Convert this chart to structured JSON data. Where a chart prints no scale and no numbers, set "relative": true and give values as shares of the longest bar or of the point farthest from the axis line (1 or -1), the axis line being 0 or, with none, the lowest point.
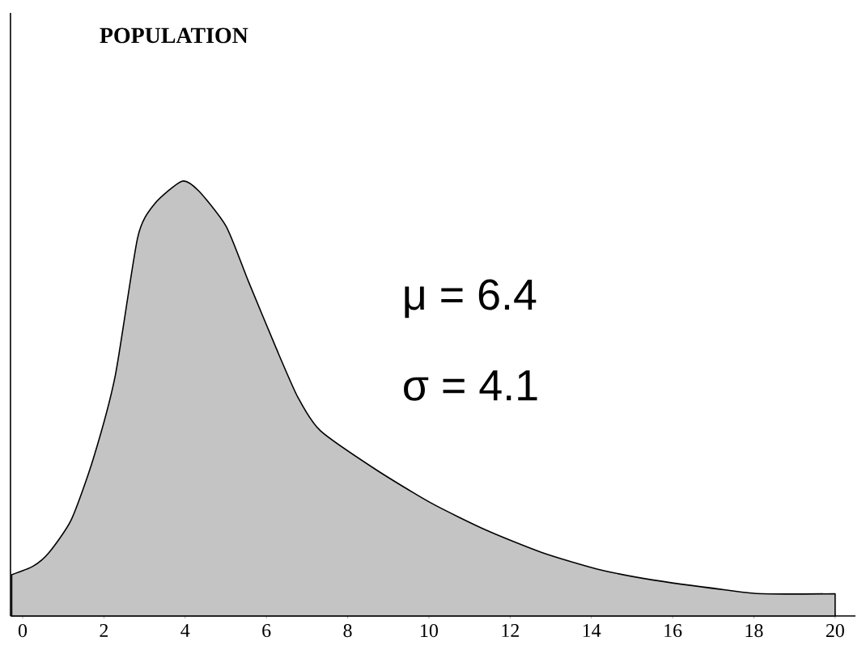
{
  "chart_data": {
    "type": "area",
    "title": "POPULATION",
    "relative": true,
    "x": [
      -0.27,
      0.25,
      0.65,
      1.2,
      1.74,
      2.28,
      2.83,
      3.24,
      3.92,
      4.33,
      5.01,
      5.56,
      6.24,
      6.78,
      7.33,
      8.69,
      10.05,
      11.42,
      12.78,
      14.14,
      15.5,
      17.3,
      18.2,
      20.0
    ],
    "series": [
      {
        "color": "#c4c4c4",
        "values": [
          0.095,
          0.114,
          0.146,
          0.222,
          0.362,
          0.553,
          0.87,
          0.947,
          1.0,
          0.978,
          0.896,
          0.769,
          0.616,
          0.502,
          0.426,
          0.337,
          0.26,
          0.197,
          0.146,
          0.108,
          0.083,
          0.06,
          0.051,
          0.051
        ]
      }
    ],
    "xlim": [
      -0.3,
      20.5
    ],
    "xticks": [
      0,
      2,
      4,
      6,
      8,
      10,
      12,
      14,
      16,
      18,
      20
    ],
    "annotations": [
      "μ = 6.4",
      "σ = 4.1"
    ],
    "marker": "none"
  }
}
